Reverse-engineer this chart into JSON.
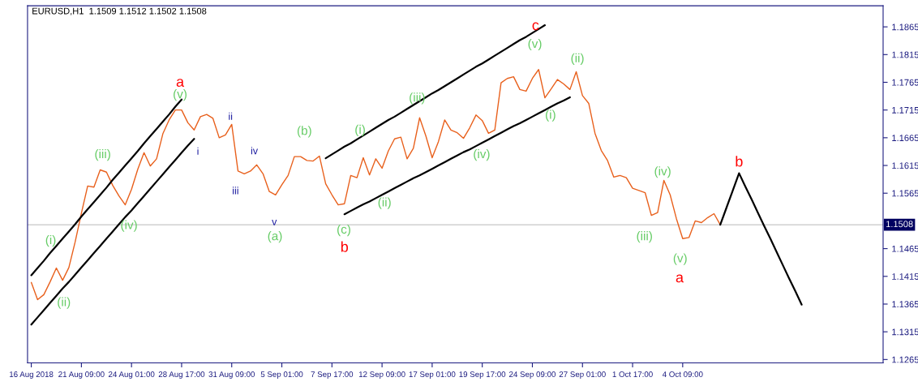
{
  "chart_data": {
    "type": "line",
    "title": "EURUSD,H1  1.1509 1.1512 1.1502 1.1508",
    "categories": [
      "16 Aug 2018",
      null,
      null,
      null,
      null,
      null,
      null,
      null,
      "21 Aug 09:00",
      null,
      null,
      null,
      null,
      null,
      null,
      null,
      "24 Aug 01:00",
      null,
      null,
      null,
      null,
      null,
      null,
      null,
      "28 Aug 17:00",
      null,
      null,
      null,
      null,
      null,
      null,
      null,
      "31 Aug 09:00",
      null,
      null,
      null,
      null,
      null,
      null,
      null,
      "5 Sep 01:00",
      null,
      null,
      null,
      null,
      null,
      null,
      null,
      "7 Sep 17:00",
      null,
      null,
      null,
      null,
      null,
      null,
      null,
      "12 Sep 09:00",
      null,
      null,
      null,
      null,
      null,
      null,
      null,
      "17 Sep 01:00",
      null,
      null,
      null,
      null,
      null,
      null,
      null,
      "19 Sep 17:00",
      null,
      null,
      null,
      null,
      null,
      null,
      null,
      "24 Sep 09:00",
      null,
      null,
      null,
      null,
      null,
      null,
      null,
      "27 Sep 01:00",
      null,
      null,
      null,
      null,
      null,
      null,
      null,
      "1 Oct 17:00",
      null,
      null,
      null,
      null,
      null,
      null,
      null,
      "4 Oct 09:00",
      null,
      null,
      null,
      null,
      null,
      null,
      null,
      null,
      null,
      null,
      null,
      null,
      null,
      null,
      null,
      null,
      null,
      null,
      null
    ],
    "ylim": [
      1.1259,
      1.1903
    ],
    "yticks": [
      1.1865,
      1.1815,
      1.1765,
      1.1715,
      1.1665,
      1.1615,
      1.1565,
      1.1465,
      1.1415,
      1.1365,
      1.1315,
      1.1265
    ],
    "grid": false,
    "series": [
      {
        "color": "#e8601c",
        "values": [
          1.1404,
          1.1373,
          1.1382,
          1.1405,
          1.143,
          1.1408,
          1.1431,
          1.1477,
          1.1529,
          1.1578,
          1.1576,
          1.1607,
          1.1603,
          1.1579,
          1.156,
          1.1544,
          1.1572,
          1.1608,
          1.1638,
          1.1614,
          1.1627,
          1.1672,
          1.1697,
          1.1715,
          1.1715,
          1.1692,
          1.1679,
          1.1703,
          1.1707,
          1.17,
          1.1665,
          1.167,
          1.1689,
          1.1605,
          1.16,
          1.1605,
          1.1616,
          1.16,
          1.1568,
          1.1562,
          1.158,
          1.1597,
          1.1631,
          1.1631,
          1.1624,
          1.1623,
          1.1632,
          1.1582,
          1.1562,
          1.1544,
          1.1546,
          1.1597,
          1.1593,
          1.1629,
          1.1598,
          1.1627,
          1.161,
          1.1641,
          1.1663,
          1.1666,
          1.1627,
          1.1646,
          1.1701,
          1.1668,
          1.1629,
          1.1658,
          1.1697,
          1.1679,
          1.1674,
          1.1664,
          1.1683,
          1.1706,
          1.1696,
          1.1673,
          1.1679,
          1.1764,
          1.1772,
          1.1775,
          1.1752,
          1.1749,
          1.1772,
          1.1788,
          1.1737,
          1.1753,
          1.177,
          1.1762,
          1.1752,
          1.1784,
          1.1741,
          1.1727,
          1.1673,
          1.1642,
          1.1624,
          1.1594,
          1.1597,
          1.1593,
          1.1574,
          1.157,
          1.1566,
          1.1525,
          1.153,
          1.1588,
          1.1562,
          1.1519,
          1.1483,
          1.1485,
          1.1515,
          1.1512,
          1.1521,
          1.1528,
          1.1508,
          null,
          null,
          null,
          null,
          null,
          null,
          null,
          null,
          null,
          null,
          null,
          null,
          null
        ]
      },
      {
        "color": "#000000",
        "values": [
          1.1417,
          1.143,
          1.1443,
          1.1457,
          1.147,
          1.1483,
          1.1496,
          1.1509,
          1.1523,
          1.1536,
          1.1549,
          1.1562,
          1.1575,
          1.1589,
          1.1602,
          1.1615,
          1.1628,
          1.1641,
          1.1655,
          1.1668,
          1.1681,
          1.1694,
          1.1707,
          1.1721,
          1.1734,
          null,
          null,
          null,
          null,
          null,
          null,
          null,
          null,
          null,
          null,
          null,
          null,
          null,
          null,
          null,
          null,
          null,
          null,
          null,
          null,
          null,
          null,
          null,
          null,
          null,
          null,
          null,
          null,
          null,
          null,
          null,
          null,
          null,
          null,
          null,
          null,
          null,
          null,
          null,
          null,
          null,
          null,
          null,
          null,
          null,
          null,
          null,
          null,
          null,
          null,
          null,
          null,
          null,
          null,
          null,
          null,
          null,
          null,
          null,
          null,
          null,
          null,
          null,
          null,
          null,
          null,
          null,
          null,
          null,
          null,
          null,
          null,
          null,
          null,
          null,
          null,
          null,
          null,
          null,
          null,
          null,
          null,
          null,
          null,
          null,
          null,
          null,
          null,
          null,
          null,
          null,
          null,
          null,
          null,
          null,
          null,
          null,
          null,
          null
        ]
      },
      {
        "color": "#000000",
        "values": [
          1.1328,
          1.1341,
          1.1354,
          1.1367,
          1.138,
          1.1393,
          1.1405,
          1.1418,
          1.1431,
          1.1444,
          1.1457,
          1.147,
          1.1483,
          1.1496,
          1.1509,
          1.1522,
          1.1534,
          1.1547,
          1.156,
          1.1573,
          1.1586,
          1.1599,
          1.1612,
          1.1625,
          1.1638,
          1.1651,
          1.1663,
          null,
          null,
          null,
          null,
          null,
          null,
          null,
          null,
          null,
          null,
          null,
          null,
          null,
          null,
          null,
          null,
          null,
          null,
          null,
          null,
          null,
          null,
          null,
          null,
          null,
          null,
          null,
          null,
          null,
          null,
          null,
          null,
          null,
          null,
          null,
          null,
          null,
          null,
          null,
          null,
          null,
          null,
          null,
          null,
          null,
          null,
          null,
          null,
          null,
          null,
          null,
          null,
          null,
          null,
          null,
          null,
          null,
          null,
          null,
          null,
          null,
          null,
          null,
          null,
          null,
          null,
          null,
          null,
          null,
          null,
          null,
          null,
          null,
          null,
          null,
          null,
          null,
          null,
          null,
          null,
          null,
          null,
          null,
          null,
          null,
          null,
          null,
          null,
          null,
          null,
          null,
          null,
          null,
          null,
          null,
          null,
          null
        ]
      },
      {
        "color": "#000000",
        "values": [
          null,
          null,
          null,
          null,
          null,
          null,
          null,
          null,
          null,
          null,
          null,
          null,
          null,
          null,
          null,
          null,
          null,
          null,
          null,
          null,
          null,
          null,
          null,
          null,
          null,
          null,
          null,
          null,
          null,
          null,
          null,
          null,
          null,
          null,
          null,
          null,
          null,
          null,
          null,
          null,
          null,
          null,
          null,
          null,
          null,
          null,
          null,
          1.1628,
          1.1635,
          1.1642,
          1.1649,
          1.1655,
          1.1662,
          1.1669,
          1.1676,
          1.1683,
          1.169,
          1.1697,
          1.1703,
          1.171,
          1.1717,
          1.1724,
          1.1731,
          1.1738,
          1.1745,
          1.1751,
          1.1758,
          1.1765,
          1.1772,
          1.1779,
          1.1786,
          1.1793,
          1.1799,
          1.1806,
          1.1813,
          1.182,
          1.1827,
          1.1834,
          1.1841,
          1.1847,
          1.1854,
          1.1861,
          1.1868,
          null,
          null,
          null,
          null,
          null,
          null,
          null,
          null,
          null,
          null,
          null,
          null,
          null,
          null,
          null,
          null,
          null,
          null,
          null,
          null,
          null,
          null,
          null,
          null,
          null,
          null,
          null,
          null,
          null,
          null,
          null,
          null,
          null,
          null,
          null,
          null,
          null,
          null,
          null,
          null,
          null
        ]
      },
      {
        "color": "#000000",
        "values": [
          null,
          null,
          null,
          null,
          null,
          null,
          null,
          null,
          null,
          null,
          null,
          null,
          null,
          null,
          null,
          null,
          null,
          null,
          null,
          null,
          null,
          null,
          null,
          null,
          null,
          null,
          null,
          null,
          null,
          null,
          null,
          null,
          null,
          null,
          null,
          null,
          null,
          null,
          null,
          null,
          null,
          null,
          null,
          null,
          null,
          null,
          null,
          null,
          null,
          null,
          1.1527,
          1.1533,
          1.1539,
          1.1545,
          1.155,
          1.1556,
          1.1562,
          1.1568,
          1.1574,
          1.158,
          1.1586,
          1.1592,
          1.1597,
          1.1603,
          1.1609,
          1.1615,
          1.1621,
          1.1627,
          1.1633,
          1.1639,
          1.1644,
          1.165,
          1.1656,
          1.1662,
          1.1668,
          1.1674,
          1.168,
          1.1686,
          1.1691,
          1.1697,
          1.1703,
          1.1709,
          1.1715,
          1.1721,
          1.1727,
          1.1732,
          1.1738,
          null,
          null,
          null,
          null,
          null,
          null,
          null,
          null,
          null,
          null,
          null,
          null,
          null,
          null,
          null,
          null,
          null,
          null,
          null,
          null,
          null,
          null,
          null,
          null,
          null,
          null,
          null,
          null,
          null,
          null,
          null,
          null,
          null,
          null,
          null,
          null,
          null
        ]
      },
      {
        "color": "#000000",
        "values": [
          null,
          null,
          null,
          null,
          null,
          null,
          null,
          null,
          null,
          null,
          null,
          null,
          null,
          null,
          null,
          null,
          null,
          null,
          null,
          null,
          null,
          null,
          null,
          null,
          null,
          null,
          null,
          null,
          null,
          null,
          null,
          null,
          null,
          null,
          null,
          null,
          null,
          null,
          null,
          null,
          null,
          null,
          null,
          null,
          null,
          null,
          null,
          null,
          null,
          null,
          null,
          null,
          null,
          null,
          null,
          null,
          null,
          null,
          null,
          null,
          null,
          null,
          null,
          null,
          null,
          null,
          null,
          null,
          null,
          null,
          null,
          null,
          null,
          null,
          null,
          null,
          null,
          null,
          null,
          null,
          null,
          null,
          null,
          null,
          null,
          null,
          null,
          null,
          null,
          null,
          null,
          null,
          null,
          null,
          null,
          null,
          null,
          null,
          null,
          null,
          null,
          null,
          null,
          null,
          null,
          null,
          null,
          null,
          null,
          null,
          1.1508,
          1.1539,
          1.157,
          1.1601,
          1.1577,
          1.1554,
          1.153,
          1.1506,
          1.1483,
          1.1459,
          1.1435,
          1.1411,
          1.1388,
          1.1364
        ]
      }
    ],
    "ref_lines": [
      {
        "axis": "y",
        "value": 1.1508,
        "label": "1.1508",
        "color": "#d0d0d0"
      }
    ],
    "annotations": [
      "a",
      "b",
      "c",
      "a",
      "b",
      "(i)",
      "(ii)",
      "(iii)",
      "(iv)",
      "(v)",
      "(a)",
      "(b)",
      "(c)",
      "(i)",
      "(ii)",
      "(iii)",
      "(iv)",
      "(v)",
      "(i)",
      "(ii)",
      "(iii)",
      "(iv)",
      "(v)",
      "i",
      "ii",
      "iii",
      "iv",
      "v"
    ]
  }
}
